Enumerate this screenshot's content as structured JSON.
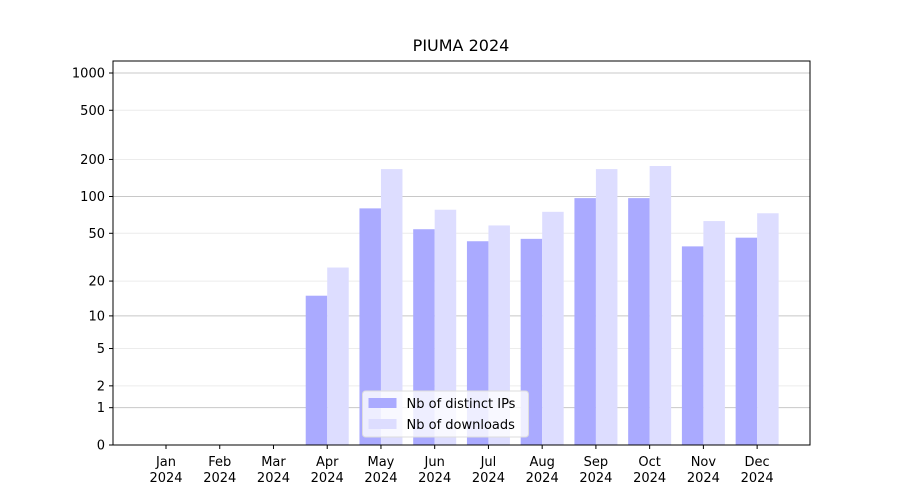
{
  "chart_data": {
    "type": "bar",
    "title": "PIUMA 2024",
    "categories": [
      "Jan 2024",
      "Feb 2024",
      "Mar 2024",
      "Apr 2024",
      "May 2024",
      "Jun 2024",
      "Jul 2024",
      "Aug 2024",
      "Sep 2024",
      "Oct 2024",
      "Nov 2024",
      "Dec 2024"
    ],
    "series": [
      {
        "name": "Nb of distinct IPs",
        "color": "#aaaaff",
        "values": [
          0,
          0,
          0,
          15,
          80,
          54,
          43,
          45,
          97,
          97,
          39,
          46
        ]
      },
      {
        "name": "Nb of downloads",
        "color": "#ddddff",
        "values": [
          0,
          0,
          0,
          26,
          167,
          78,
          58,
          75,
          167,
          177,
          63,
          73
        ]
      }
    ],
    "yscale": "log1p",
    "ylim": [
      0,
      1250
    ],
    "yticks": [
      0,
      1,
      2,
      5,
      10,
      20,
      50,
      100,
      200,
      500,
      1000
    ],
    "grid": true,
    "legend": "lower center"
  }
}
